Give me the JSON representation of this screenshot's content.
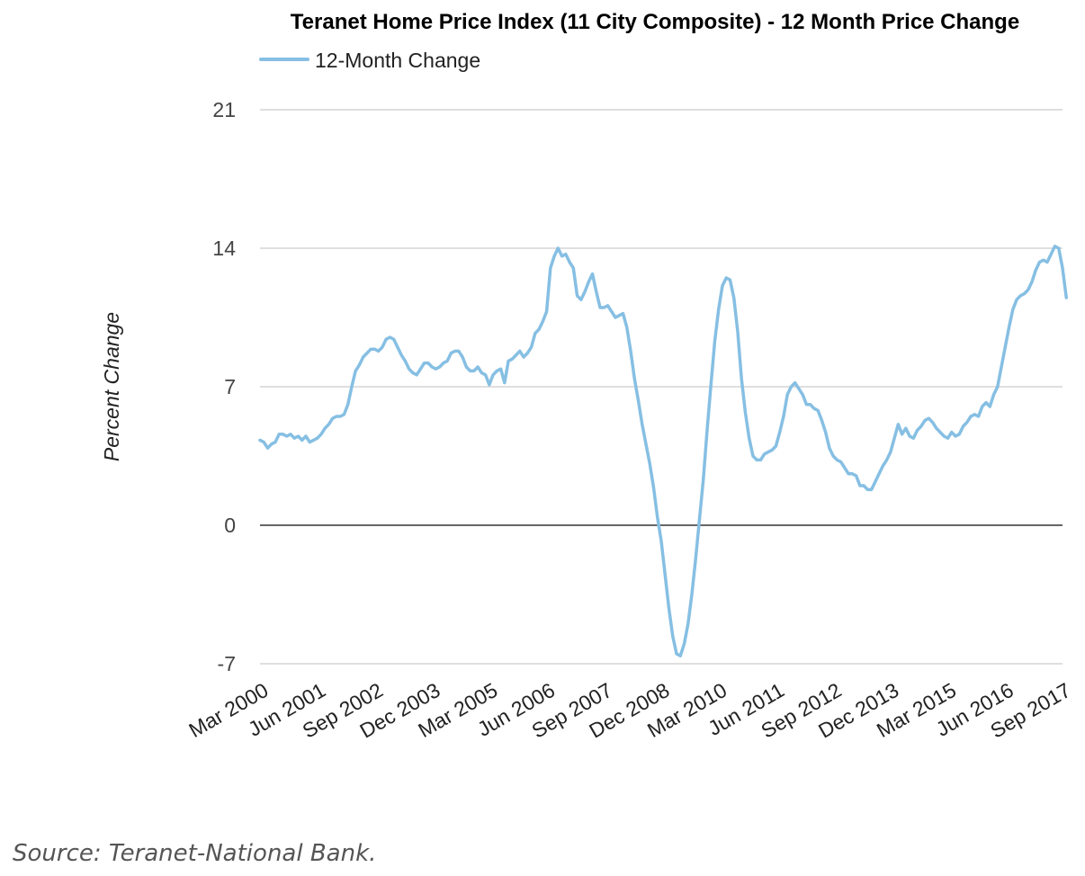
{
  "chart_data": {
    "type": "line",
    "title": "Teranet Home Price Index (11 City Composite) - 12 Month Price Change",
    "ylabel": "Percent Change",
    "xlabel": "",
    "ylim": [
      -7,
      21
    ],
    "yticks": [
      -7,
      0,
      7,
      14,
      21
    ],
    "x_start": "Mar 2000",
    "x_end": "Sep 2017",
    "xtick_labels": [
      "Mar 2000",
      "Jun 2001",
      "Sep 2002",
      "Dec 2003",
      "Mar 2005",
      "Jun 2006",
      "Sep 2007",
      "Dec 2008",
      "Mar 2010",
      "Jun 2011",
      "Sep 2012",
      "Dec 2013",
      "Mar 2015",
      "Jun 2016",
      "Sep 2017"
    ],
    "grid": true,
    "legend_position": "top-left",
    "series_color": "#86bfe3",
    "series": [
      {
        "name": "12-Month Change",
        "points": [
          [
            "Mar 2000",
            4.3
          ],
          [
            "Apr 2000",
            4.2
          ],
          [
            "May 2000",
            3.9
          ],
          [
            "Jun 2000",
            4.1
          ],
          [
            "Jul 2000",
            4.2
          ],
          [
            "Aug 2000",
            4.6
          ],
          [
            "Sep 2000",
            4.6
          ],
          [
            "Oct 2000",
            4.5
          ],
          [
            "Nov 2000",
            4.6
          ],
          [
            "Dec 2000",
            4.4
          ],
          [
            "Jan 2001",
            4.5
          ],
          [
            "Feb 2001",
            4.3
          ],
          [
            "Mar 2001",
            4.5
          ],
          [
            "Apr 2001",
            4.2
          ],
          [
            "May 2001",
            4.3
          ],
          [
            "Jun 2001",
            4.4
          ],
          [
            "Jul 2001",
            4.6
          ],
          [
            "Aug 2001",
            4.9
          ],
          [
            "Sep 2001",
            5.1
          ],
          [
            "Oct 2001",
            5.4
          ],
          [
            "Nov 2001",
            5.5
          ],
          [
            "Dec 2001",
            5.5
          ],
          [
            "Jan 2002",
            5.6
          ],
          [
            "Feb 2002",
            6.1
          ],
          [
            "Mar 2002",
            7.0
          ],
          [
            "Apr 2002",
            7.8
          ],
          [
            "May 2002",
            8.1
          ],
          [
            "Jun 2002",
            8.5
          ],
          [
            "Jul 2002",
            8.7
          ],
          [
            "Aug 2002",
            8.9
          ],
          [
            "Sep 2002",
            8.9
          ],
          [
            "Oct 2002",
            8.8
          ],
          [
            "Nov 2002",
            9.0
          ],
          [
            "Dec 2002",
            9.4
          ],
          [
            "Jan 2003",
            9.5
          ],
          [
            "Feb 2003",
            9.4
          ],
          [
            "Mar 2003",
            9.0
          ],
          [
            "Apr 2003",
            8.6
          ],
          [
            "May 2003",
            8.3
          ],
          [
            "Jun 2003",
            7.9
          ],
          [
            "Jul 2003",
            7.7
          ],
          [
            "Aug 2003",
            7.6
          ],
          [
            "Sep 2003",
            7.9
          ],
          [
            "Oct 2003",
            8.2
          ],
          [
            "Nov 2003",
            8.2
          ],
          [
            "Dec 2003",
            8.0
          ],
          [
            "Jan 2004",
            7.9
          ],
          [
            "Feb 2004",
            8.0
          ],
          [
            "Mar 2004",
            8.2
          ],
          [
            "Apr 2004",
            8.3
          ],
          [
            "May 2004",
            8.7
          ],
          [
            "Jun 2004",
            8.8
          ],
          [
            "Jul 2004",
            8.8
          ],
          [
            "Aug 2004",
            8.5
          ],
          [
            "Sep 2004",
            8.0
          ],
          [
            "Oct 2004",
            7.8
          ],
          [
            "Nov 2004",
            7.8
          ],
          [
            "Dec 2004",
            8.0
          ],
          [
            "Jan 2005",
            7.7
          ],
          [
            "Feb 2005",
            7.6
          ],
          [
            "Mar 2005",
            7.1
          ],
          [
            "Apr 2005",
            7.6
          ],
          [
            "May 2005",
            7.8
          ],
          [
            "Jun 2005",
            7.9
          ],
          [
            "Jul 2005",
            7.2
          ],
          [
            "Aug 2005",
            8.3
          ],
          [
            "Sep 2005",
            8.4
          ],
          [
            "Oct 2005",
            8.6
          ],
          [
            "Nov 2005",
            8.8
          ],
          [
            "Dec 2005",
            8.5
          ],
          [
            "Jan 2006",
            8.7
          ],
          [
            "Feb 2006",
            9.0
          ],
          [
            "Mar 2006",
            9.7
          ],
          [
            "Apr 2006",
            9.9
          ],
          [
            "May 2006",
            10.3
          ],
          [
            "Jun 2006",
            10.8
          ],
          [
            "Jul 2006",
            13.0
          ],
          [
            "Aug 2006",
            13.6
          ],
          [
            "Sep 2006",
            14.0
          ],
          [
            "Oct 2006",
            13.6
          ],
          [
            "Nov 2006",
            13.7
          ],
          [
            "Dec 2006",
            13.3
          ],
          [
            "Jan 2007",
            13.0
          ],
          [
            "Feb 2007",
            11.6
          ],
          [
            "Mar 2007",
            11.4
          ],
          [
            "Apr 2007",
            11.8
          ],
          [
            "May 2007",
            12.3
          ],
          [
            "Jun 2007",
            12.7
          ],
          [
            "Jul 2007",
            11.8
          ],
          [
            "Aug 2007",
            11.0
          ],
          [
            "Sep 2007",
            11.0
          ],
          [
            "Oct 2007",
            11.1
          ],
          [
            "Nov 2007",
            10.8
          ],
          [
            "Dec 2007",
            10.5
          ],
          [
            "Jan 2008",
            10.6
          ],
          [
            "Feb 2008",
            10.7
          ],
          [
            "Mar 2008",
            10.0
          ],
          [
            "Apr 2008",
            8.8
          ],
          [
            "May 2008",
            7.4
          ],
          [
            "Jun 2008",
            6.3
          ],
          [
            "Jul 2008",
            5.1
          ],
          [
            "Aug 2008",
            4.1
          ],
          [
            "Sep 2008",
            3.1
          ],
          [
            "Oct 2008",
            1.9
          ],
          [
            "Nov 2008",
            0.4
          ],
          [
            "Dec 2008",
            -0.8
          ],
          [
            "Jan 2009",
            -2.5
          ],
          [
            "Feb 2009",
            -4.2
          ],
          [
            "Mar 2009",
            -5.6
          ],
          [
            "Apr 2009",
            -6.5
          ],
          [
            "May 2009",
            -6.6
          ],
          [
            "Jun 2009",
            -6.0
          ],
          [
            "Jul 2009",
            -5.0
          ],
          [
            "Aug 2009",
            -3.5
          ],
          [
            "Sep 2009",
            -1.7
          ],
          [
            "Oct 2009",
            0.3
          ],
          [
            "Nov 2009",
            2.3
          ],
          [
            "Dec 2009",
            4.8
          ],
          [
            "Jan 2010",
            7.1
          ],
          [
            "Feb 2010",
            9.3
          ],
          [
            "Mar 2010",
            10.9
          ],
          [
            "Apr 2010",
            12.1
          ],
          [
            "May 2010",
            12.5
          ],
          [
            "Jun 2010",
            12.4
          ],
          [
            "Jul 2010",
            11.5
          ],
          [
            "Aug 2010",
            9.8
          ],
          [
            "Sep 2010",
            7.4
          ],
          [
            "Oct 2010",
            5.7
          ],
          [
            "Nov 2010",
            4.4
          ],
          [
            "Dec 2010",
            3.5
          ],
          [
            "Jan 2011",
            3.3
          ],
          [
            "Feb 2011",
            3.3
          ],
          [
            "Mar 2011",
            3.6
          ],
          [
            "Apr 2011",
            3.7
          ],
          [
            "May 2011",
            3.8
          ],
          [
            "Jun 2011",
            4.0
          ],
          [
            "Jul 2011",
            4.7
          ],
          [
            "Aug 2011",
            5.5
          ],
          [
            "Sep 2011",
            6.6
          ],
          [
            "Oct 2011",
            7.0
          ],
          [
            "Nov 2011",
            7.2
          ],
          [
            "Dec 2011",
            6.9
          ],
          [
            "Jan 2012",
            6.6
          ],
          [
            "Feb 2012",
            6.1
          ],
          [
            "Mar 2012",
            6.1
          ],
          [
            "Apr 2012",
            5.9
          ],
          [
            "May 2012",
            5.8
          ],
          [
            "Jun 2012",
            5.3
          ],
          [
            "Jul 2012",
            4.7
          ],
          [
            "Aug 2012",
            3.9
          ],
          [
            "Sep 2012",
            3.5
          ],
          [
            "Oct 2012",
            3.3
          ],
          [
            "Nov 2012",
            3.2
          ],
          [
            "Dec 2012",
            2.9
          ],
          [
            "Jan 2013",
            2.6
          ],
          [
            "Feb 2013",
            2.6
          ],
          [
            "Mar 2013",
            2.5
          ],
          [
            "Apr 2013",
            2.0
          ],
          [
            "May 2013",
            2.0
          ],
          [
            "Jun 2013",
            1.8
          ],
          [
            "Jul 2013",
            1.8
          ],
          [
            "Aug 2013",
            2.2
          ],
          [
            "Sep 2013",
            2.6
          ],
          [
            "Oct 2013",
            3.0
          ],
          [
            "Nov 2013",
            3.3
          ],
          [
            "Dec 2013",
            3.7
          ],
          [
            "Jan 2014",
            4.4
          ],
          [
            "Feb 2014",
            5.1
          ],
          [
            "Mar 2014",
            4.6
          ],
          [
            "Apr 2014",
            4.9
          ],
          [
            "May 2014",
            4.5
          ],
          [
            "Jun 2014",
            4.4
          ],
          [
            "Jul 2014",
            4.8
          ],
          [
            "Aug 2014",
            5.0
          ],
          [
            "Sep 2014",
            5.3
          ],
          [
            "Oct 2014",
            5.4
          ],
          [
            "Nov 2014",
            5.2
          ],
          [
            "Dec 2014",
            4.9
          ],
          [
            "Jan 2015",
            4.7
          ],
          [
            "Feb 2015",
            4.5
          ],
          [
            "Mar 2015",
            4.4
          ],
          [
            "Apr 2015",
            4.7
          ],
          [
            "May 2015",
            4.5
          ],
          [
            "Jun 2015",
            4.6
          ],
          [
            "Jul 2015",
            5.0
          ],
          [
            "Aug 2015",
            5.2
          ],
          [
            "Sep 2015",
            5.5
          ],
          [
            "Oct 2015",
            5.6
          ],
          [
            "Nov 2015",
            5.5
          ],
          [
            "Dec 2015",
            6.0
          ],
          [
            "Jan 2016",
            6.2
          ],
          [
            "Feb 2016",
            6.0
          ],
          [
            "Mar 2016",
            6.6
          ],
          [
            "Apr 2016",
            7.0
          ],
          [
            "May 2016",
            8.0
          ],
          [
            "Jun 2016",
            9.0
          ],
          [
            "Jul 2016",
            10.0
          ],
          [
            "Aug 2016",
            10.9
          ],
          [
            "Sep 2016",
            11.4
          ],
          [
            "Oct 2016",
            11.6
          ],
          [
            "Nov 2016",
            11.7
          ],
          [
            "Dec 2016",
            11.9
          ],
          [
            "Jan 2017",
            12.3
          ],
          [
            "Feb 2017",
            12.9
          ],
          [
            "Mar 2017",
            13.3
          ],
          [
            "Apr 2017",
            13.4
          ],
          [
            "May 2017",
            13.3
          ],
          [
            "Jun 2017",
            13.7
          ],
          [
            "Jul 2017",
            14.1
          ],
          [
            "Aug 2017",
            14.0
          ],
          [
            "Sep 2017",
            13.0
          ],
          [
            "Oct 2017",
            11.5
          ]
        ]
      }
    ]
  },
  "source": "Source: Teranet-National Bank."
}
